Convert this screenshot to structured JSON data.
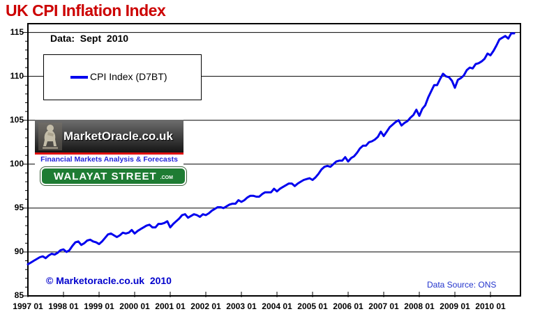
{
  "header": {
    "title": "UK CPI Inflation Index"
  },
  "annotations": {
    "data_vintage": "Data:  Sept  2010",
    "copyright": "© Marketoracle.co.uk  2010",
    "data_source": "Data Source: ONS"
  },
  "legend": {
    "position": "top-left",
    "items": [
      {
        "label": "CPI Index (D7BT)",
        "color": "#0000ee"
      }
    ]
  },
  "watermarks": {
    "marketoracle": {
      "name": "MarketOracle.co.uk",
      "tagline": "Financial Markets Analysis & Forecasts"
    },
    "walayat": {
      "name": "WALAYAT STREET",
      "tld": ".COM"
    }
  },
  "colors": {
    "title": "#cc0000",
    "line": "#0000ee",
    "copyright": "#0000cc",
    "data_source": "#2233cc",
    "tagline": "#2222dd",
    "walayat_green": "#1e7c33",
    "logo_stripe_red": "#e01010"
  },
  "chart_data": {
    "type": "line",
    "title": "UK CPI Inflation Index",
    "xlabel": "",
    "ylabel": "",
    "frequency": "monthly",
    "x_start": "1997-01",
    "x_end": "2010-09",
    "x_tick_labels": [
      "1997 01",
      "1998 01",
      "1999 01",
      "2000 01",
      "2001 01",
      "2002 01",
      "2003 01",
      "2004 01",
      "2005 01",
      "2006 01",
      "2007 01",
      "2008 01",
      "2009 01",
      "2010 01"
    ],
    "y_ticks": [
      85,
      90,
      95,
      100,
      105,
      110,
      115
    ],
    "y_gridlines": [
      90,
      95,
      100,
      105,
      110,
      115
    ],
    "ylim": [
      85,
      116
    ],
    "grid": "horizontal-only",
    "legend_position": "top-left",
    "series": [
      {
        "name": "CPI Index (D7BT)",
        "color": "#0000ee",
        "values": [
          88.6,
          88.8,
          89.0,
          89.2,
          89.4,
          89.5,
          89.3,
          89.6,
          89.8,
          89.7,
          89.9,
          90.2,
          90.3,
          90.0,
          90.2,
          90.7,
          91.1,
          91.2,
          90.8,
          91.0,
          91.3,
          91.4,
          91.2,
          91.1,
          90.9,
          91.2,
          91.6,
          92.0,
          92.1,
          91.9,
          91.7,
          91.9,
          92.2,
          92.1,
          92.2,
          92.5,
          92.1,
          92.4,
          92.6,
          92.8,
          93.0,
          93.1,
          92.8,
          92.8,
          93.2,
          93.2,
          93.3,
          93.5,
          92.8,
          93.2,
          93.5,
          93.8,
          94.2,
          94.3,
          93.9,
          94.1,
          94.3,
          94.2,
          94.0,
          94.3,
          94.2,
          94.4,
          94.7,
          94.9,
          95.1,
          95.1,
          95.0,
          95.2,
          95.4,
          95.5,
          95.5,
          95.9,
          95.7,
          95.9,
          96.2,
          96.4,
          96.4,
          96.3,
          96.3,
          96.6,
          96.8,
          96.8,
          96.8,
          97.2,
          96.9,
          97.2,
          97.4,
          97.6,
          97.8,
          97.8,
          97.5,
          97.8,
          98.0,
          98.2,
          98.3,
          98.4,
          98.2,
          98.5,
          98.9,
          99.4,
          99.7,
          99.8,
          99.7,
          100.0,
          100.3,
          100.4,
          100.4,
          100.8,
          100.3,
          100.7,
          100.9,
          101.3,
          101.8,
          102.1,
          102.1,
          102.5,
          102.6,
          102.8,
          103.1,
          103.7,
          103.2,
          103.7,
          104.2,
          104.5,
          104.8,
          105.0,
          104.4,
          104.7,
          104.9,
          105.3,
          105.6,
          106.2,
          105.5,
          106.3,
          106.7,
          107.6,
          108.3,
          109.0,
          109.0,
          109.7,
          110.3,
          110.0,
          109.9,
          109.5,
          108.7,
          109.6,
          109.8,
          110.1,
          110.7,
          111.0,
          110.9,
          111.4,
          111.5,
          111.7,
          112.0,
          112.6,
          112.4,
          112.9,
          113.5,
          114.2,
          114.4,
          114.6,
          114.3,
          114.9,
          114.9
        ]
      }
    ]
  }
}
